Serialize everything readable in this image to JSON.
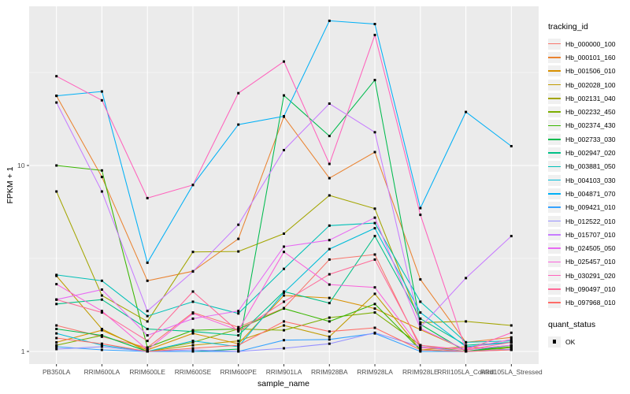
{
  "figure": {
    "background": "#FFFFFF",
    "panel_bg": "#EBEBEB",
    "grid_major_color": "#FFFFFF",
    "grid_minor_color": "#FFFFFF",
    "tick_color": "#333333",
    "tick_label_color": "#4D4D4D",
    "marker_color": "#000000"
  },
  "axes": {
    "x_title": "sample_name",
    "y_title": "FPKM + 1"
  },
  "legend": {
    "tracking_title": "tracking_id",
    "quant_title": "quant_status",
    "quant_items": [
      {
        "label": "OK",
        "marker": "black-square"
      }
    ]
  },
  "chart_data": {
    "type": "line",
    "title": "",
    "xlabel": "sample_name",
    "ylabel": "FPKM + 1",
    "y_scale": "log10",
    "ylim": [
      0.86,
      71.9
    ],
    "y_major_ticks": [
      1,
      10
    ],
    "y_tick_labels": [
      "1",
      "10"
    ],
    "y_minor_gridlines": [
      3.1623,
      31.623
    ],
    "grid": true,
    "legend_position": "right",
    "marker": "black-square",
    "categories": [
      "PB350LA",
      "RRIM600LA",
      "RRIM600LE",
      "RRIM600SE",
      "RRIM600PE",
      "RRIM901LA",
      "RRIM928BA",
      "RRIM928LA",
      "RRIM928LE",
      "RRII105LA_Control",
      "RRII105LA_Stressed"
    ],
    "series": [
      {
        "name": "Hb_000000_100",
        "color": "#F8766D",
        "values": [
          1.38,
          1.2,
          1.05,
          1.62,
          1.35,
          1.71,
          3.12,
          3.32,
          1.05,
          1.0,
          1.05
        ]
      },
      {
        "name": "Hb_000101_160",
        "color": "#EA8331",
        "values": [
          23.7,
          8.67,
          2.4,
          2.7,
          4.03,
          18.3,
          8.55,
          11.8,
          2.44,
          1.12,
          1.19
        ]
      },
      {
        "name": "Hb_001506_010",
        "color": "#D89000",
        "values": [
          1.12,
          1.3,
          1.02,
          1.25,
          1.1,
          2.0,
          1.94,
          1.7,
          1.31,
          1.02,
          1.08
        ]
      },
      {
        "name": "Hb_002028_100",
        "color": "#C09B00",
        "values": [
          2.55,
          1.32,
          1.0,
          1.08,
          1.14,
          1.38,
          1.2,
          2.04,
          1.02,
          1.06,
          1.02
        ]
      },
      {
        "name": "Hb_002131_040",
        "color": "#A3A500",
        "values": [
          7.25,
          2.0,
          1.45,
          3.43,
          3.45,
          4.3,
          6.9,
          5.86,
          1.43,
          1.45,
          1.38
        ]
      },
      {
        "name": "Hb_002232_450",
        "color": "#7CAE00",
        "values": [
          1.08,
          1.22,
          1.0,
          1.12,
          1.32,
          1.3,
          1.52,
          1.62,
          1.08,
          1.0,
          1.05
        ]
      },
      {
        "name": "Hb_002374_430",
        "color": "#39B600",
        "values": [
          10.0,
          9.4,
          1.05,
          1.3,
          1.32,
          1.7,
          1.45,
          1.8,
          1.02,
          1.0,
          1.06
        ]
      },
      {
        "name": "Hb_002733_030",
        "color": "#00BB4E",
        "values": [
          1.32,
          1.22,
          1.0,
          1.0,
          1.03,
          23.8,
          14.4,
          28.8,
          1.4,
          1.0,
          1.08
        ]
      },
      {
        "name": "Hb_002947_020",
        "color": "#00C087",
        "values": [
          1.8,
          1.9,
          1.32,
          1.28,
          1.22,
          2.1,
          1.82,
          4.17,
          1.5,
          1.08,
          1.12
        ]
      },
      {
        "name": "Hb_003881_050",
        "color": "#00C0B8",
        "values": [
          2.58,
          2.4,
          1.55,
          1.85,
          1.6,
          2.78,
          4.75,
          4.9,
          1.85,
          1.12,
          1.14
        ]
      },
      {
        "name": "Hb_004103_030",
        "color": "#00BCD8",
        "values": [
          1.25,
          1.08,
          1.0,
          1.14,
          1.06,
          2.07,
          3.55,
          4.6,
          1.62,
          1.06,
          1.12
        ]
      },
      {
        "name": "Hb_004871_070",
        "color": "#00B0F6",
        "values": [
          23.7,
          25.0,
          3.0,
          7.86,
          16.6,
          18.4,
          60.0,
          57.6,
          5.9,
          19.4,
          12.7
        ]
      },
      {
        "name": "Hb_009421_010",
        "color": "#35A2FF",
        "values": [
          1.06,
          1.02,
          1.0,
          1.0,
          1.0,
          1.15,
          1.16,
          1.25,
          1.0,
          1.0,
          1.02
        ]
      },
      {
        "name": "Hb_012522_010",
        "color": "#9590FF",
        "values": [
          1.03,
          1.06,
          1.0,
          1.02,
          1.0,
          1.04,
          1.1,
          1.26,
          1.06,
          1.0,
          1.03
        ]
      },
      {
        "name": "Hb_015707_010",
        "color": "#C77CFF",
        "values": [
          21.8,
          7.25,
          1.65,
          2.69,
          4.8,
          12.1,
          21.5,
          15.1,
          1.35,
          2.48,
          4.17
        ]
      },
      {
        "name": "Hb_024505_050",
        "color": "#E76BF3",
        "values": [
          1.9,
          2.15,
          1.22,
          1.5,
          1.65,
          3.66,
          3.97,
          5.24,
          1.33,
          1.02,
          1.08
        ]
      },
      {
        "name": "Hb_025457_010",
        "color": "#FA62DB",
        "values": [
          2.3,
          1.65,
          1.02,
          1.6,
          1.3,
          3.43,
          2.29,
          2.21,
          1.05,
          1.04,
          1.16
        ]
      },
      {
        "name": "Hb_030291_020",
        "color": "#FF62BC",
        "values": [
          30.2,
          22.4,
          6.68,
          7.86,
          24.5,
          36.2,
          10.2,
          50.3,
          5.43,
          1.02,
          1.26
        ]
      },
      {
        "name": "Hb_090497_010",
        "color": "#FF6A98",
        "values": [
          1.9,
          1.62,
          1.14,
          2.1,
          1.28,
          1.85,
          2.6,
          3.12,
          1.08,
          1.02,
          1.12
        ]
      },
      {
        "name": "Hb_097968_010",
        "color": "#FF6C67",
        "values": [
          1.18,
          1.1,
          1.0,
          1.04,
          1.08,
          1.45,
          1.28,
          1.34,
          1.02,
          1.0,
          1.02
        ]
      }
    ]
  }
}
